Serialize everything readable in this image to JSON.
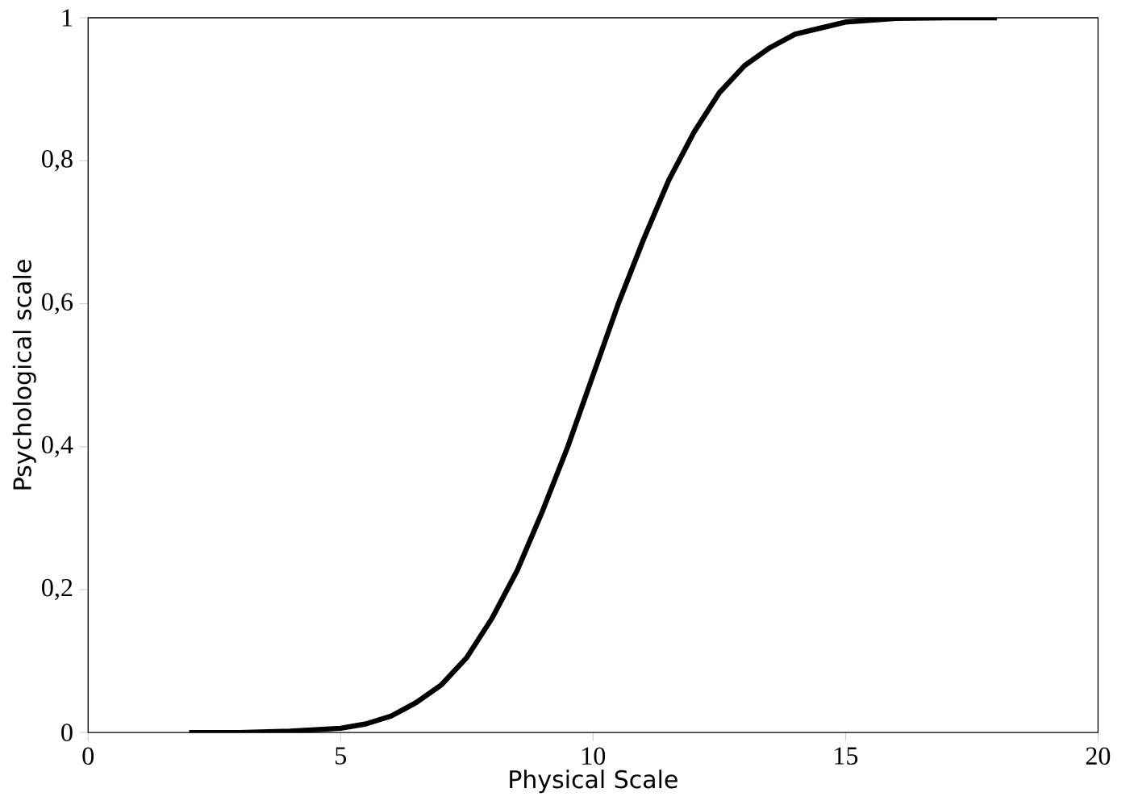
{
  "chart_data": {
    "type": "line",
    "xlabel": "Physical Scale",
    "ylabel": "Psychological scale",
    "x": [
      2,
      3,
      4,
      5,
      5.5,
      6,
      6.5,
      7,
      7.5,
      8,
      8.5,
      9,
      9.5,
      10,
      10.5,
      11,
      11.5,
      12,
      12.5,
      13,
      13.5,
      14,
      15,
      16,
      17,
      18
    ],
    "series": [
      {
        "color": "#000000",
        "values": [
          0.0,
          0.0,
          0.002,
          0.006,
          0.012,
          0.023,
          0.042,
          0.067,
          0.105,
          0.16,
          0.227,
          0.31,
          0.4,
          0.5,
          0.6,
          0.69,
          0.773,
          0.84,
          0.895,
          0.933,
          0.958,
          0.977,
          0.994,
          0.999,
          1.0,
          1.0
        ]
      }
    ],
    "xlim": [
      0,
      20
    ],
    "ylim": [
      0,
      1
    ],
    "xticks": [
      0,
      5,
      10,
      15,
      20
    ],
    "yticks": [
      0,
      {
        "value": 0.2,
        "label": "0,2"
      },
      {
        "value": 0.4,
        "label": "0,4"
      },
      {
        "value": 0.6,
        "label": "0,6"
      },
      {
        "value": 0.8,
        "label": "0,8"
      },
      1
    ],
    "grid": false,
    "marker": "none",
    "line_style": "solid"
  }
}
